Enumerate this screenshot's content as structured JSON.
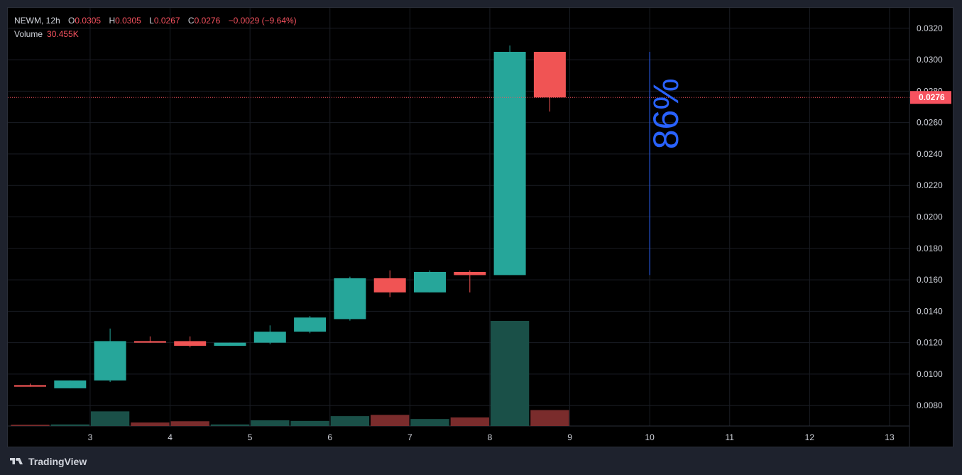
{
  "legend": {
    "symbol": "NEWM",
    "interval": "12h",
    "o_label": "O",
    "o_value": "0.0305",
    "h_label": "H",
    "h_value": "0.0305",
    "l_label": "L",
    "l_value": "0.0267",
    "c_label": "C",
    "c_value": "0.0276",
    "change": "−0.0029 (−9.64%)",
    "volume_label": "Volume",
    "volume_value": "30.455K"
  },
  "footer": {
    "brand": "TradingView"
  },
  "colors": {
    "up": "#26a69a",
    "down": "#f05454",
    "vol_up": "#1a5048",
    "vol_down": "#7a2c2c",
    "grid": "#1a1d24",
    "axis_text": "#d1d4dc",
    "price_line": "#f7525f",
    "annotation": "#2962ff"
  },
  "chart_data": {
    "type": "candlestick",
    "price_range": [
      0.0067,
      0.0333
    ],
    "y_ticks": [
      "0.0080",
      "0.0100",
      "0.0120",
      "0.0140",
      "0.0160",
      "0.0180",
      "0.0200",
      "0.0220",
      "0.0240",
      "0.0260",
      "0.0280",
      "0.0300",
      "0.0320"
    ],
    "x_tick_labels": [
      "3",
      "4",
      "5",
      "6",
      "7",
      "8",
      "9",
      "10",
      "11",
      "12",
      "13"
    ],
    "last_price": "0.0276",
    "candles": [
      {
        "o": 0.0093,
        "h": 0.0094,
        "l": 0.0092,
        "c": 0.0092,
        "vol": 0.4
      },
      {
        "o": 0.0091,
        "h": 0.0096,
        "l": 0.0091,
        "c": 0.0096,
        "vol": 0.5
      },
      {
        "o": 0.0096,
        "h": 0.0129,
        "l": 0.0095,
        "c": 0.0121,
        "vol": 4.6
      },
      {
        "o": 0.0121,
        "h": 0.0124,
        "l": 0.012,
        "c": 0.012,
        "vol": 1.1
      },
      {
        "o": 0.0121,
        "h": 0.0124,
        "l": 0.0117,
        "c": 0.0118,
        "vol": 1.5
      },
      {
        "o": 0.0118,
        "h": 0.012,
        "l": 0.0118,
        "c": 0.012,
        "vol": 0.5
      },
      {
        "o": 0.012,
        "h": 0.0131,
        "l": 0.0119,
        "c": 0.0127,
        "vol": 1.8
      },
      {
        "o": 0.0127,
        "h": 0.0137,
        "l": 0.0126,
        "c": 0.0136,
        "vol": 1.6
      },
      {
        "o": 0.0135,
        "h": 0.0162,
        "l": 0.0134,
        "c": 0.0161,
        "vol": 3.1
      },
      {
        "o": 0.0161,
        "h": 0.0166,
        "l": 0.0149,
        "c": 0.0152,
        "vol": 3.5
      },
      {
        "o": 0.0152,
        "h": 0.0166,
        "l": 0.0152,
        "c": 0.0165,
        "vol": 2.2
      },
      {
        "o": 0.0165,
        "h": 0.0166,
        "l": 0.0152,
        "c": 0.0163,
        "vol": 2.7
      },
      {
        "o": 0.0163,
        "h": 0.0309,
        "l": 0.0163,
        "c": 0.0305,
        "vol": 33.0
      },
      {
        "o": 0.0305,
        "h": 0.0305,
        "l": 0.0267,
        "c": 0.0276,
        "vol": 5.0
      }
    ],
    "annotation": {
      "label": "86%",
      "from": 0.0163,
      "to": 0.0305
    }
  }
}
